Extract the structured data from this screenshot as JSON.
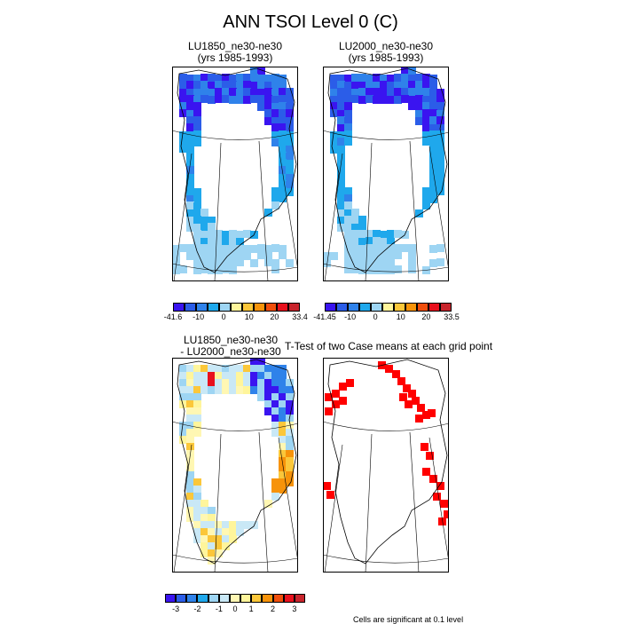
{
  "figure_title": "ANN TSOI Level 0 (C)",
  "panels": {
    "p1": {
      "title_line1": "LU1850_ne30-ne30",
      "title_line2": "(yrs 1985-1993)"
    },
    "p2": {
      "title_line1": "LU2000_ne30-ne30",
      "title_line2": "(yrs 1985-1993)"
    },
    "p3": {
      "title_line1": "LU1850_ne30-ne30",
      "title_line2": "- LU2000_ne30-ne30"
    },
    "p4": {
      "title_line1": "T-Test of two Case means at each grid point"
    }
  },
  "colorbars": {
    "abs1": {
      "labels": [
        "-41.6",
        "-10",
        "0",
        "10",
        "20",
        "33.4"
      ]
    },
    "abs2": {
      "labels": [
        "-41.45",
        "-10",
        "0",
        "10",
        "20",
        "33.5"
      ]
    },
    "diff": {
      "labels": [
        "-3",
        "-2",
        "-1",
        "0",
        "1",
        "2",
        "3"
      ]
    }
  },
  "colors": {
    "abs_scale": [
      "#3a14f0",
      "#2b5de8",
      "#2f82ea",
      "#1fa8ec",
      "#9ed5f3",
      "#fff59b",
      "#fbc73a",
      "#f7930a",
      "#f04e0c",
      "#e8111d",
      "#c8242c"
    ],
    "diff_scale": [
      "#3a14f0",
      "#2b5de8",
      "#2f82ea",
      "#1fa8ec",
      "#9ed5f3",
      "#c9e8f6",
      "#fff7b3",
      "#fff59b",
      "#fbc73a",
      "#f7930a",
      "#f04e0c",
      "#e8111d",
      "#c8242c"
    ],
    "significant": "#ff0000"
  },
  "footnote": "Cells are significant at 0.1 level"
}
